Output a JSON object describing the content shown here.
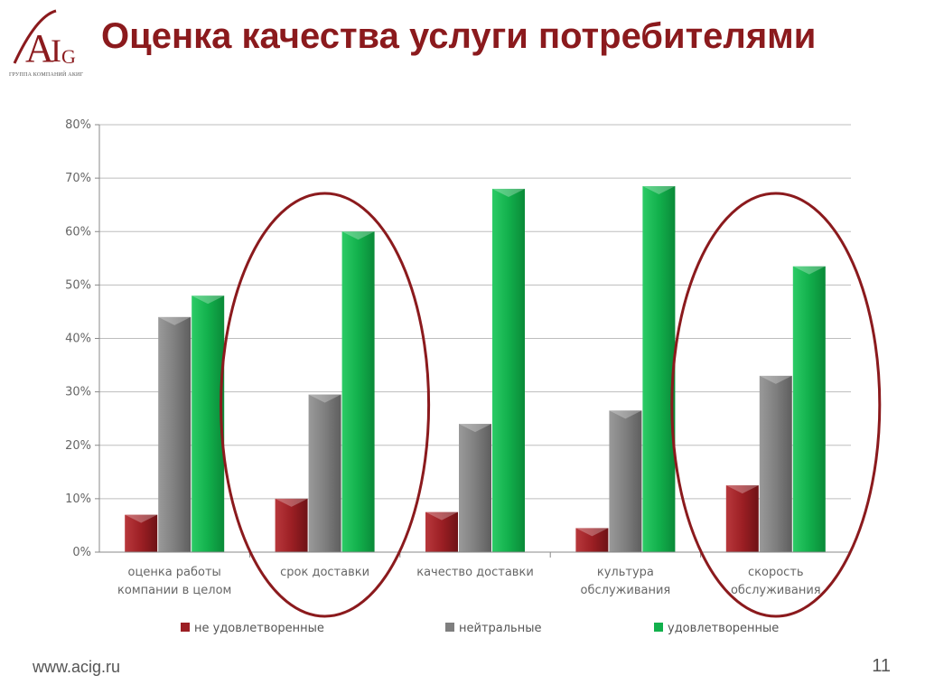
{
  "header": {
    "title": "Оценка качества услуги потребителями",
    "logo_letters": "AIG",
    "logo_caption": "ГРУППА КОМПАНИЙ АКИГ"
  },
  "footer": {
    "url": "www.acig.ru",
    "page_number": "11"
  },
  "chart_data": {
    "type": "bar",
    "categories": [
      [
        "оценка работы",
        "компании в целом"
      ],
      [
        "срок доставки"
      ],
      [
        "качество доставки"
      ],
      [
        "культура",
        "обслуживания"
      ],
      [
        "скорость",
        "обслуживания"
      ]
    ],
    "series": [
      {
        "name": "не удовлетворенные",
        "color": "#9c1f24",
        "values": [
          7,
          10,
          7.5,
          4.5,
          12.5
        ]
      },
      {
        "name": "нейтральные",
        "color": "#7f7f7f",
        "values": [
          44,
          29.5,
          24,
          26.5,
          33
        ]
      },
      {
        "name": "удовлетворенные",
        "color": "#12b04c",
        "values": [
          48,
          60,
          68,
          68.5,
          53.5
        ]
      }
    ],
    "y_ticks": [
      "0%",
      "10%",
      "20%",
      "30%",
      "40%",
      "50%",
      "60%",
      "70%",
      "80%"
    ],
    "ylim": [
      0,
      80
    ],
    "grid": true,
    "legend_position": "bottom",
    "highlighted_categories": [
      1,
      4
    ],
    "highlight_color": "#8b1a1d"
  }
}
